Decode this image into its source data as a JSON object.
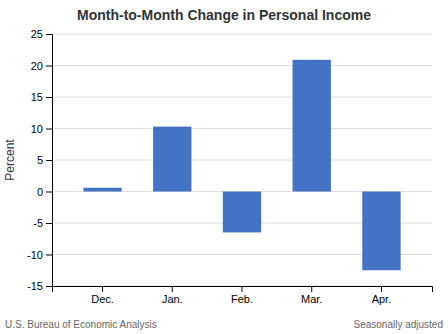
{
  "chart_data": {
    "type": "bar",
    "title": "Month-to-Month Change in Personal Income",
    "categories": [
      "Dec.",
      "Jan.",
      "Feb.",
      "Mar.",
      "Apr."
    ],
    "values": [
      0.6,
      10.3,
      -6.5,
      20.9,
      -12.5
    ],
    "color": "#4472C4",
    "ylabel": "Percent",
    "ylim": [
      -15,
      25
    ],
    "yticks": [
      -15,
      -10,
      -5,
      0,
      5,
      10,
      15,
      20,
      25
    ],
    "grid": true,
    "annotations": [
      "U.S. Bureau of Economic Analysis",
      "Seasonally adjusted"
    ]
  }
}
